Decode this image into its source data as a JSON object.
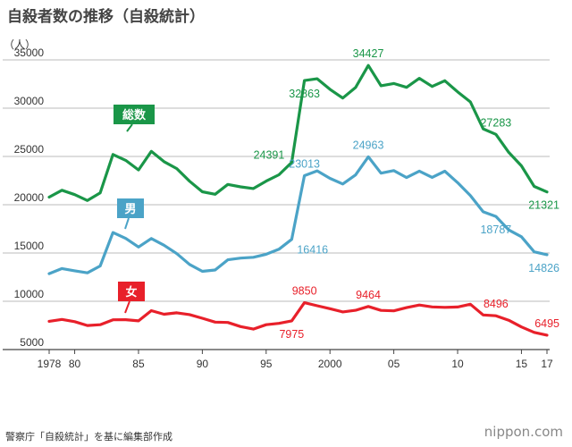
{
  "title": "自殺者数の推移（自殺統計）",
  "source": "警察庁「自殺統計」を基に編集部作成",
  "brand": "nippon.com",
  "chart_data": {
    "type": "line",
    "title": "自殺者数の推移（自殺統計）",
    "ylabel": "（人）",
    "xlabel": "",
    "ylim": [
      5000,
      35000
    ],
    "y_ticks": [
      5000,
      10000,
      15000,
      20000,
      25000,
      30000,
      35000
    ],
    "x_ticks": [
      {
        "year": 1978,
        "label": "1978"
      },
      {
        "year": 1980,
        "label": "80"
      },
      {
        "year": 1985,
        "label": "85"
      },
      {
        "year": 1990,
        "label": "90"
      },
      {
        "year": 1995,
        "label": "95"
      },
      {
        "year": 2000,
        "label": "2000"
      },
      {
        "year": 2005,
        "label": "05"
      },
      {
        "year": 2010,
        "label": "10"
      },
      {
        "year": 2015,
        "label": "15"
      },
      {
        "year": 2017,
        "label": "17"
      }
    ],
    "x": [
      1978,
      1979,
      1980,
      1981,
      1982,
      1983,
      1984,
      1985,
      1986,
      1987,
      1988,
      1989,
      1990,
      1991,
      1992,
      1993,
      1994,
      1995,
      1996,
      1997,
      1998,
      1999,
      2000,
      2001,
      2002,
      2003,
      2004,
      2005,
      2006,
      2007,
      2008,
      2009,
      2010,
      2011,
      2012,
      2013,
      2014,
      2015,
      2016,
      2017
    ],
    "series": [
      {
        "name": "総数",
        "color": "#1a9648",
        "values": [
          20788,
          21503,
          21048,
          20434,
          21228,
          25202,
          24596,
          23599,
          25524,
          24460,
          23742,
          22436,
          21346,
          21084,
          22104,
          21851,
          21679,
          22445,
          23104,
          24391,
          32863,
          33048,
          31957,
          31042,
          32143,
          34427,
          32325,
          32552,
          32155,
          33093,
          32249,
          32845,
          31690,
          30651,
          27858,
          27283,
          25427,
          24025,
          21897,
          21321
        ],
        "labels": [
          {
            "year": 1997,
            "text": "24391",
            "pos": "left"
          },
          {
            "year": 1998,
            "text": "32863",
            "pos": "below"
          },
          {
            "year": 2003,
            "text": "34427",
            "pos": "above"
          },
          {
            "year": 2013,
            "text": "27283",
            "pos": "above"
          },
          {
            "year": 2017,
            "text": "21321",
            "pos": "below"
          }
        ]
      },
      {
        "name": "男",
        "color": "#4ba3c7",
        "values": [
          12859,
          13386,
          13155,
          12942,
          13654,
          17116,
          16508,
          15624,
          16497,
          15802,
          14934,
          13818,
          13102,
          13242,
          14296,
          14468,
          14560,
          14874,
          15393,
          16416,
          23013,
          23512,
          22727,
          22144,
          23080,
          24963,
          23272,
          23540,
          22813,
          23478,
          22831,
          23472,
          22283,
          20955,
          19273,
          18787,
          17386,
          16681,
          15121,
          14826
        ],
        "labels": [
          {
            "year": 1997,
            "text": "16416",
            "pos": "right"
          },
          {
            "year": 1998,
            "text": "23013",
            "pos": "above"
          },
          {
            "year": 2003,
            "text": "24963",
            "pos": "above"
          },
          {
            "year": 2013,
            "text": "18787",
            "pos": "below"
          },
          {
            "year": 2017,
            "text": "14826",
            "pos": "below"
          }
        ]
      },
      {
        "name": "女",
        "color": "#e8202a",
        "values": [
          7929,
          8117,
          7893,
          7492,
          7574,
          8086,
          8088,
          7975,
          9027,
          8658,
          8808,
          8618,
          8244,
          7842,
          7808,
          7383,
          7119,
          7571,
          7711,
          7975,
          9850,
          9536,
          9230,
          8898,
          9063,
          9464,
          9053,
          9012,
          9342,
          9615,
          9418,
          9373,
          9407,
          9696,
          8585,
          8496,
          8041,
          7344,
          6776,
          6495
        ],
        "labels": [
          {
            "year": 1997,
            "text": "7975",
            "pos": "below"
          },
          {
            "year": 1998,
            "text": "9850",
            "pos": "above"
          },
          {
            "year": 2003,
            "text": "9464",
            "pos": "above"
          },
          {
            "year": 2013,
            "text": "8496",
            "pos": "above"
          },
          {
            "year": 2017,
            "text": "6495",
            "pos": "above"
          }
        ]
      }
    ]
  }
}
